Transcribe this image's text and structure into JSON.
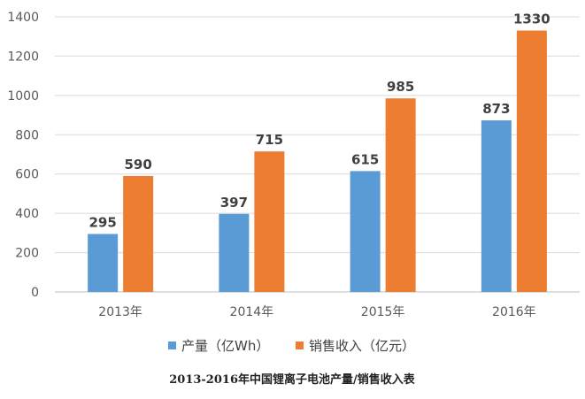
{
  "chart_data": {
    "type": "bar",
    "categories": [
      "2013年",
      "2014年",
      "2015年",
      "2016年"
    ],
    "series": [
      {
        "name": "产量（亿Wh）",
        "values": [
          295,
          397,
          615,
          873
        ],
        "color": "#5B9BD5"
      },
      {
        "name": "销售收入（亿元）",
        "values": [
          590,
          715,
          985,
          1330
        ],
        "color": "#ED7D31"
      }
    ],
    "ylim": [
      0,
      1400
    ],
    "yticks": [
      0,
      200,
      400,
      600,
      800,
      1000,
      1200,
      1400
    ],
    "grid": true,
    "legend": "bottom",
    "caption": "2013-2016年中国锂离子电池产量/销售收入表"
  }
}
